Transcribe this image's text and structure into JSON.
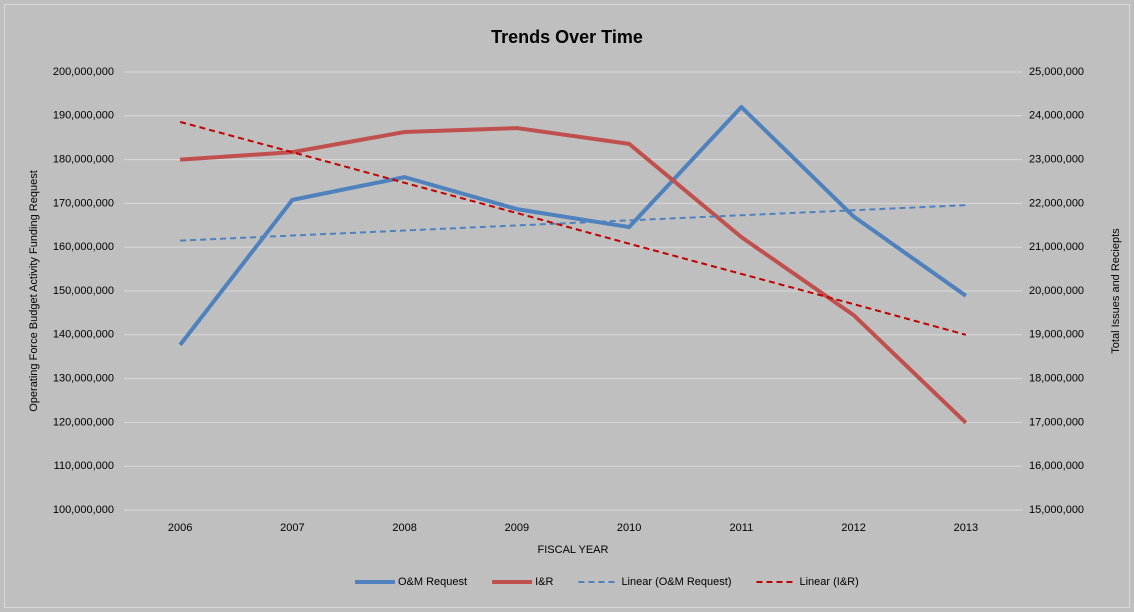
{
  "chart_data": {
    "type": "line",
    "title": "Trends Over Time",
    "x_label": "FISCAL YEAR",
    "y_label": "Operating Force Budget Activity  Funding Request",
    "y2_label": "Total Issues and Reciepts",
    "categories": [
      "2006",
      "2007",
      "2008",
      "2009",
      "2010",
      "2011",
      "2012",
      "2013"
    ],
    "series": [
      {
        "name": "O&M Request",
        "color": "#4f81bd",
        "axis": "y",
        "dashed": false,
        "values": [
          137700000,
          170800000,
          176000000,
          168700000,
          164600000,
          192000000,
          167000000,
          148900000
        ]
      },
      {
        "name": "I&R",
        "color": "#c0504d",
        "axis": "y2",
        "dashed": false,
        "values": [
          23000000,
          23170000,
          23630000,
          23720000,
          23360000,
          21230000,
          19450000,
          16990000
        ]
      },
      {
        "name": "Linear (O&M Request)",
        "color": "#4f81bd",
        "axis": "y",
        "dashed": true,
        "values": [
          161500000,
          162660000,
          163810000,
          164970000,
          166130000,
          167290000,
          168440000,
          169600000
        ]
      },
      {
        "name": "Linear (I&R)",
        "color": "#c00000",
        "axis": "y2",
        "dashed": true,
        "values": [
          23860000,
          23170000,
          22470000,
          21780000,
          21080000,
          20390000,
          19700000,
          19000000
        ]
      }
    ],
    "ylim": [
      100000000,
      200000000
    ],
    "yticks": [
      {
        "value": 100000000,
        "label": "100,000,000"
      },
      {
        "value": 110000000,
        "label": "110,000,000"
      },
      {
        "value": 120000000,
        "label": "120,000,000"
      },
      {
        "value": 130000000,
        "label": "130,000,000"
      },
      {
        "value": 140000000,
        "label": "140,000,000"
      },
      {
        "value": 150000000,
        "label": "150,000,000"
      },
      {
        "value": 160000000,
        "label": "160,000,000"
      },
      {
        "value": 170000000,
        "label": "170,000,000"
      },
      {
        "value": 180000000,
        "label": "180,000,000"
      },
      {
        "value": 190000000,
        "label": "190,000,000"
      },
      {
        "value": 200000000,
        "label": "200,000,000"
      }
    ],
    "y2lim": [
      15000000,
      25000000
    ],
    "y2ticks": [
      {
        "value": 15000000,
        "label": "15,000,000"
      },
      {
        "value": 16000000,
        "label": "16,000,000"
      },
      {
        "value": 17000000,
        "label": "17,000,000"
      },
      {
        "value": 18000000,
        "label": "18,000,000"
      },
      {
        "value": 19000000,
        "label": "19,000,000"
      },
      {
        "value": 20000000,
        "label": "20,000,000"
      },
      {
        "value": 21000000,
        "label": "21,000,000"
      },
      {
        "value": 22000000,
        "label": "22,000,000"
      },
      {
        "value": 23000000,
        "label": "23,000,000"
      },
      {
        "value": 24000000,
        "label": "24,000,000"
      },
      {
        "value": 25000000,
        "label": "25,000,000"
      }
    ],
    "grid": true,
    "legend": "bottom"
  }
}
